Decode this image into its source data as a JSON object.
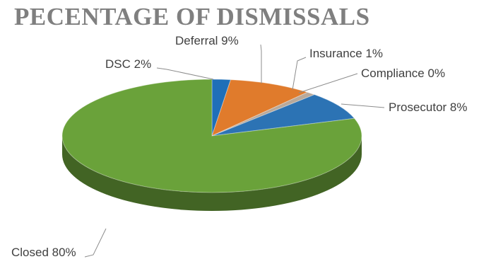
{
  "chart_data": {
    "type": "pie",
    "style": "3d",
    "title": "PECENTAGE OF DISMISSALS",
    "slices": [
      {
        "label": "DSC",
        "value": 2,
        "data_label": "DSC  2%",
        "color": "#1f6fb8"
      },
      {
        "label": "Deferral",
        "value": 9,
        "data_label": "Deferral  9%",
        "color": "#e07b2c"
      },
      {
        "label": "Insurance",
        "value": 1,
        "data_label": "Insurance  1%",
        "color": "#b9a99a"
      },
      {
        "label": "Compliance",
        "value": 0,
        "data_label": "Compliance 0%",
        "color": "#e8c53a"
      },
      {
        "label": "Prosecutor",
        "value": 8,
        "data_label": "Prosecutor  8%",
        "color": "#2c73b4"
      },
      {
        "label": "Closed",
        "value": 80,
        "data_label": "Closed 80%",
        "color": "#6aa23a"
      }
    ],
    "legend": "none",
    "grid": false
  }
}
